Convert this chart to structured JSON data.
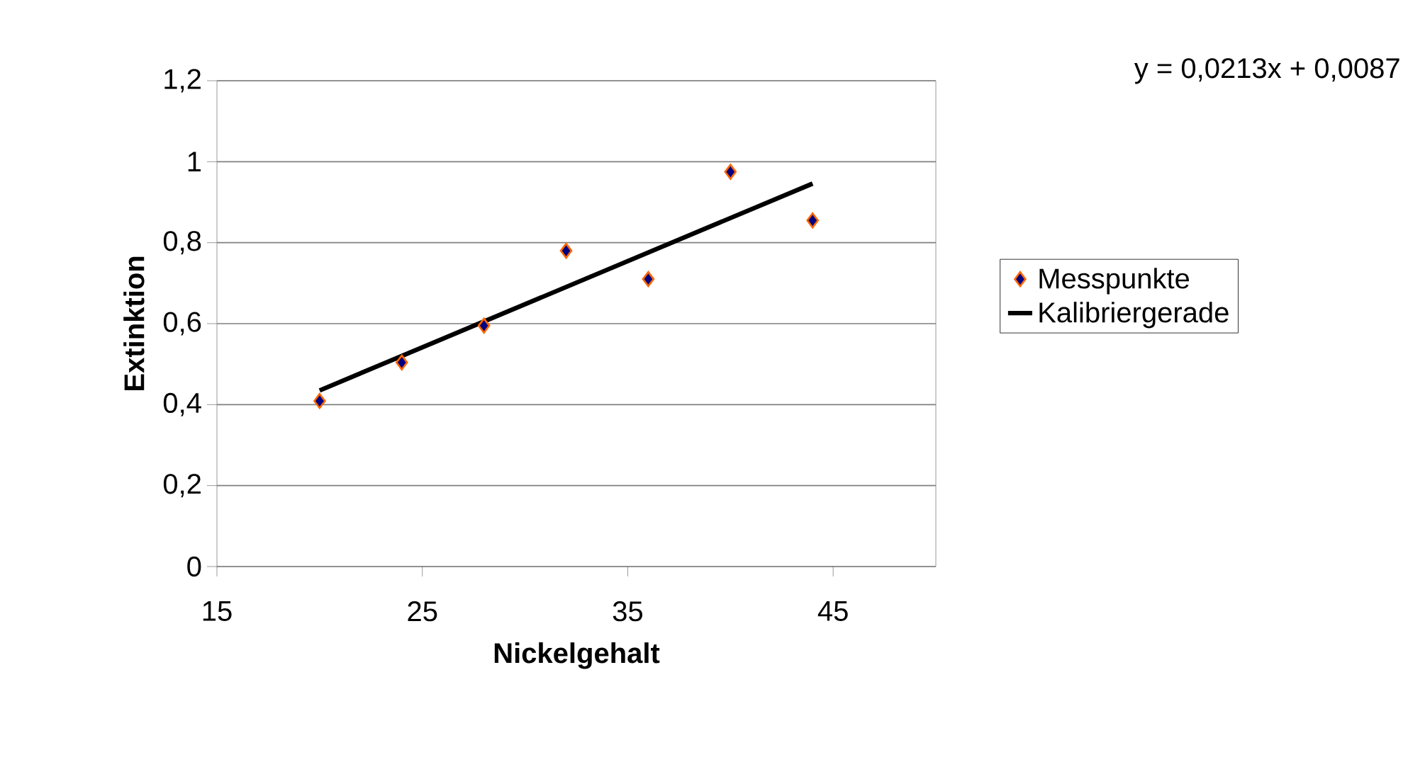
{
  "chart_data": {
    "type": "scatter",
    "xlabel": "Nickelgehalt",
    "ylabel": "Extinktion",
    "annotations": [
      "y = 0,0213x + 0,0087"
    ],
    "x": [
      20,
      24,
      28,
      32,
      36,
      40,
      44
    ],
    "series": [
      {
        "name": "Messpunkte",
        "color": "#000080",
        "marker": "diamond",
        "values": [
          0.409,
          0.504,
          0.595,
          0.78,
          0.71,
          0.975,
          0.855
        ]
      },
      {
        "name": "Kalibriergerade",
        "type": "line",
        "color": "#000000",
        "marker": "none",
        "line_style": "solid",
        "x": [
          20,
          44
        ],
        "values": [
          0.435,
          0.946
        ]
      }
    ],
    "xlim": [
      15,
      50
    ],
    "xticks": [
      15,
      25,
      35,
      45
    ],
    "ylim": [
      0,
      1.2
    ],
    "yticks": [
      0,
      {
        "value": 0.2,
        "label": "0,2"
      },
      {
        "value": 0.4,
        "label": "0,4"
      },
      {
        "value": 0.6,
        "label": "0,6"
      },
      {
        "value": 0.8,
        "label": "0,8"
      },
      1,
      {
        "value": 1.2,
        "label": "1,2"
      }
    ],
    "grid": "y",
    "legend": "right"
  }
}
